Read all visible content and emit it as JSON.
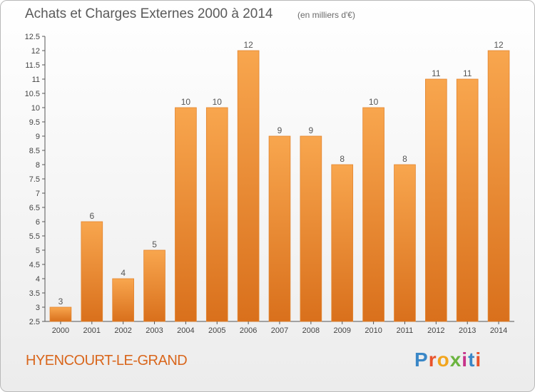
{
  "title": "Achats et Charges Externes 2000 à 2014",
  "unit_note": "(en milliers d'€)",
  "commune": "HYENCOURT-LE-GRAND",
  "logo": {
    "text": "Proxiti",
    "colors": [
      "#3a87c7",
      "#e9532b",
      "#f2a51d",
      "#6bb43f",
      "#c6338a",
      "#3a87c7",
      "#e9532b"
    ]
  },
  "colors": {
    "bar_top": "#f8a64e",
    "bar_bottom": "#d9701c",
    "bar_edge": "#e3852f",
    "commune_text": "#d9661c"
  },
  "chart_data": {
    "type": "bar",
    "title": "Achats et Charges Externes 2000 à 2014",
    "xlabel": "",
    "ylabel": "",
    "categories": [
      "2000",
      "2001",
      "2002",
      "2003",
      "2004",
      "2005",
      "2006",
      "2007",
      "2008",
      "2009",
      "2010",
      "2011",
      "2012",
      "2013",
      "2014"
    ],
    "values": [
      3,
      6,
      4,
      5,
      10,
      10,
      12,
      9,
      9,
      8,
      10,
      8,
      11,
      11,
      12
    ],
    "ylim": [
      2.5,
      12.5
    ],
    "yticks": [
      "2.5",
      "3",
      "3.5",
      "4",
      "4.5",
      "5",
      "5.5",
      "6",
      "6.5",
      "7",
      "7.5",
      "8",
      "8.5",
      "9",
      "9.5",
      "10",
      "10.5",
      "11",
      "11.5",
      "12",
      "12.5"
    ],
    "grid": false,
    "data_labels": true
  }
}
